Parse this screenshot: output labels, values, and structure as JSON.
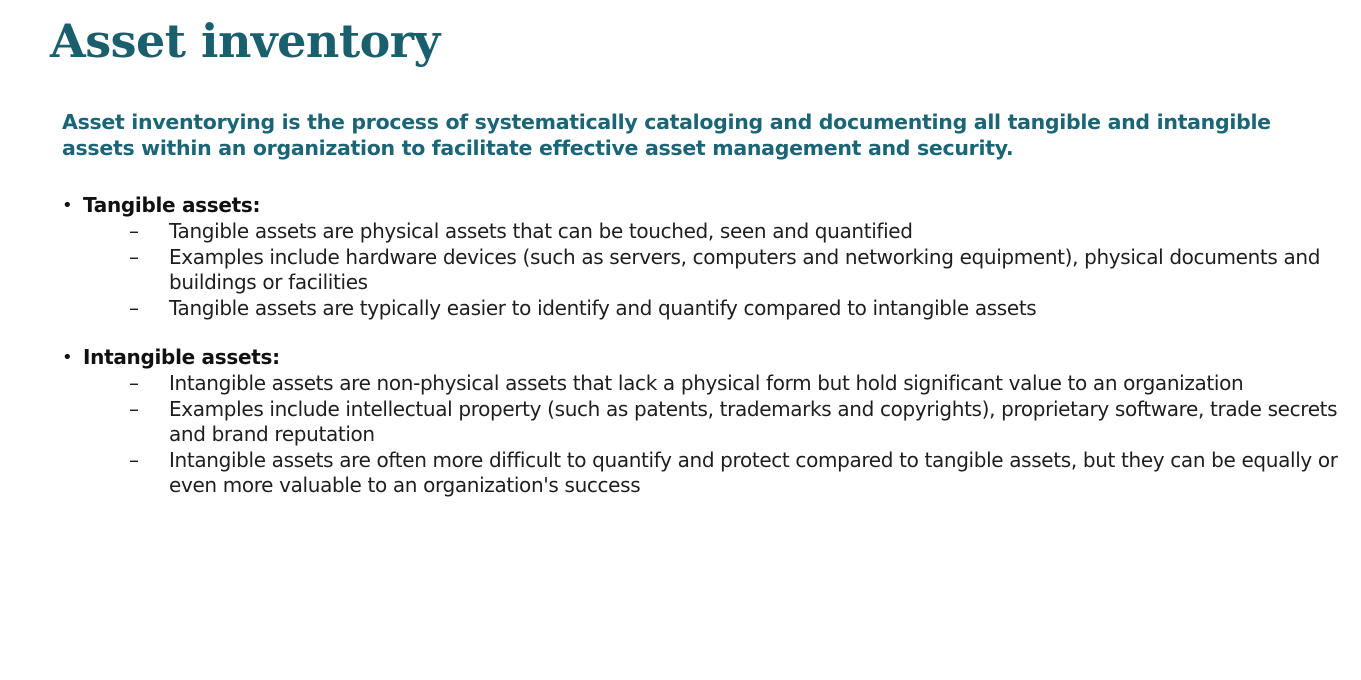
{
  "slide": {
    "title": "Asset inventory",
    "intro": "Asset inventorying is the process of systematically cataloging and documenting all tangible and intangible assets within an organization to facilitate effective asset management and security.",
    "bullet_glyph": "•",
    "dash_glyph": "–",
    "colors": {
      "title": "#1a5f6d",
      "intro": "#1a6677",
      "body": "#1e1e1e",
      "background": "#ffffff"
    },
    "sections": [
      {
        "label": "Tangible assets:",
        "items": [
          "Tangible assets are physical assets that can be touched, seen and quantified",
          "Examples include hardware devices (such as servers, computers and networking equipment), physical documents and buildings or facilities",
          "Tangible assets are typically easier to identify and quantify compared to intangible assets"
        ]
      },
      {
        "label": "Intangible assets:",
        "items": [
          "Intangible assets are non-physical assets that lack a physical form but hold significant value to an organization",
          "Examples include intellectual property (such as patents, trademarks and copyrights), proprietary software, trade secrets and brand reputation",
          "Intangible assets are often more difficult to quantify and protect compared to tangible assets, but they can be equally or even more valuable to an organization's success"
        ]
      }
    ]
  }
}
